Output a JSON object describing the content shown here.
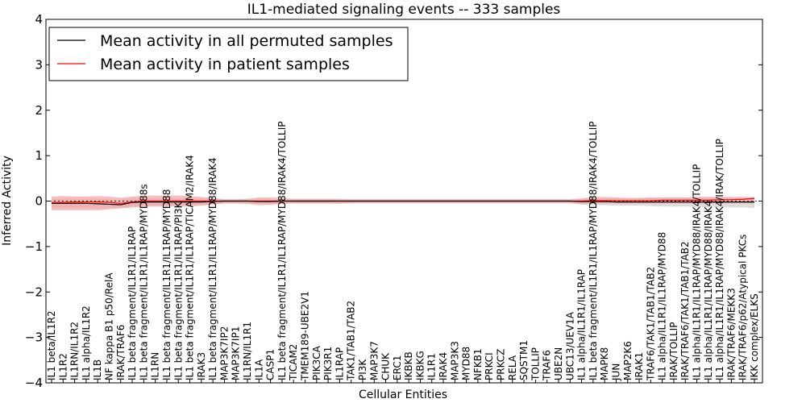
{
  "chart_data": {
    "type": "line",
    "title": "IL1-mediated signaling events -- 333 samples",
    "xlabel": "Cellular Entities",
    "ylabel": "Inferred Activity",
    "ylim": [
      -4,
      4
    ],
    "yticks": [
      "−4",
      "−3",
      "−2",
      "−1",
      "0",
      "1",
      "2",
      "3",
      "4"
    ],
    "legend_position": "top-left",
    "colors": {
      "permuted": "#000000",
      "patient": "#ff0000",
      "patient_band": "#f4a5a5",
      "permuted_band": "#d9d9d9"
    },
    "categories": [
      "IL1 beta/IL1R2",
      "IL1R2",
      "IL1RN/IL1R2",
      "IL1 alpha/IL1R2",
      "IL1B",
      "NF kappa B1 p50/RelA",
      "IRAK/TRAF6",
      "IL1 beta fragment/IL1R1/IL1RAP",
      "IL1 beta fragment/IL1R1/IL1RAP/MYD88s",
      "IL1RN",
      "IL1 beta fragment/IL1R1/IL1RAP/MYD88",
      "IL1 beta fragment/IL1R1/IL1RAP/PI3K",
      "IL1 beta fragment/IL1R1/IL1RAP/TICAM2/IRAK4",
      "IRAK3",
      "IL1 beta fragment/IL1R1/IL1RAP/MYD88/IRAK4",
      "MAP3K7IP2",
      "MAP3K7IP1",
      "IL1RN/IL1R1",
      "IL1A",
      "CASP1",
      "IL1 beta fragment/IL1R1/IL1RAP/MYD88/IRAK4/TOLLIP",
      "TICAM2",
      "TMEM189-UBE2V1",
      "PIK3CA",
      "PIK3R1",
      "IL1RAP",
      "TAK1/TAB1/TAB2",
      "PI3K",
      "MAP3K7",
      "CHUK",
      "ERC1",
      "IKBKB",
      "IKBKG",
      "IL1R1",
      "IRAK4",
      "MAP3K3",
      "MYD88",
      "NFKB1",
      "PRKCI",
      "PRKCZ",
      "RELA",
      "SQSTM1",
      "TOLLIP",
      "TRAF6",
      "UBE2N",
      "UBC13/UEV1A",
      "IL1 alpha/IL1R1/IL1RAP",
      "IL1 beta fragment/IL1R1/IL1RAP/MYD88/IRAK4/TOLLIP",
      "MAPK8",
      "JUN",
      "MAP2K6",
      "IRAK1",
      "TRAF6/TAK1/TAB1/TAB2",
      "IL1 alpha/IL1R1/IL1RAP/MYD88",
      "IRAK/TOLLIP",
      "IRAK/TRAF6/TAK1/TAB1/TAB2",
      "IL1 alpha/IL1R1/IL1RAP/MYD88/IRAK4/TOLLIP",
      "IL1 alpha/IL1R1/IL1RAP/MYD88/IRAK4",
      "IL1 alpha/IL1R1/IL1RAP/MYD88/IRAK4/IRAK/TOLLIP",
      "IRAK/TRAF6/MEKK3",
      "IRAK/TRAF6/p62/Atypical PKCs",
      "IKK complex/ELKS"
    ],
    "series": [
      {
        "name": "Mean activity in all permuted samples",
        "values": [
          -0.05,
          -0.05,
          -0.05,
          -0.05,
          -0.06,
          -0.07,
          -0.08,
          -0.03,
          -0.02,
          -0.02,
          -0.02,
          -0.02,
          -0.02,
          -0.02,
          -0.01,
          0,
          0,
          0,
          -0.01,
          -0.01,
          0,
          0,
          0,
          0,
          0,
          0,
          0,
          0,
          0,
          0,
          0,
          0,
          0,
          0,
          0,
          0,
          0,
          0,
          0,
          0,
          0,
          0,
          0,
          0,
          0,
          0,
          -0.01,
          -0.01,
          -0.01,
          -0.02,
          -0.02,
          -0.02,
          -0.02,
          -0.02,
          -0.02,
          -0.02,
          -0.02,
          -0.02,
          -0.02,
          -0.02,
          -0.02,
          -0.02
        ],
        "lower": [
          -0.15,
          -0.15,
          -0.15,
          -0.15,
          -0.16,
          -0.16,
          -0.16,
          -0.12,
          -0.1,
          -0.1,
          -0.1,
          -0.1,
          -0.1,
          -0.08,
          -0.07,
          -0.05,
          -0.05,
          -0.05,
          -0.06,
          -0.06,
          -0.05,
          -0.05,
          -0.05,
          -0.05,
          -0.05,
          -0.05,
          -0.05,
          -0.05,
          -0.05,
          -0.05,
          -0.05,
          -0.05,
          -0.05,
          -0.05,
          -0.05,
          -0.05,
          -0.05,
          -0.05,
          -0.05,
          -0.05,
          -0.05,
          -0.05,
          -0.05,
          -0.05,
          -0.05,
          -0.05,
          -0.08,
          -0.09,
          -0.09,
          -0.1,
          -0.1,
          -0.1,
          -0.11,
          -0.12,
          -0.12,
          -0.12,
          -0.13,
          -0.13,
          -0.13,
          -0.14,
          -0.14,
          -0.15
        ],
        "upper": [
          0.05,
          0.05,
          0.05,
          0.05,
          0.05,
          0.04,
          0.03,
          0.06,
          0.06,
          0.06,
          0.06,
          0.06,
          0.06,
          0.05,
          0.05,
          0.03,
          0.03,
          0.03,
          0.03,
          0.03,
          0.03,
          0.03,
          0.03,
          0.03,
          0.03,
          0.03,
          0.03,
          0.03,
          0.03,
          0.03,
          0.03,
          0.03,
          0.03,
          0.03,
          0.03,
          0.03,
          0.03,
          0.03,
          0.03,
          0.03,
          0.03,
          0.03,
          0.03,
          0.03,
          0.03,
          0.03,
          0.05,
          0.06,
          0.06,
          0.06,
          0.06,
          0.06,
          0.07,
          0.08,
          0.08,
          0.08,
          0.09,
          0.09,
          0.1,
          0.1,
          0.1,
          0.1
        ]
      },
      {
        "name": "Mean activity in patient samples",
        "values": [
          -0.03,
          -0.03,
          -0.02,
          -0.02,
          -0.02,
          -0.03,
          -0.05,
          -0.02,
          0,
          0,
          0,
          0,
          0,
          0,
          0,
          0,
          0,
          0,
          0,
          0,
          0,
          0,
          0,
          0,
          0,
          0,
          0,
          0,
          0,
          0,
          0,
          0,
          0,
          0,
          0,
          0,
          0,
          0,
          0,
          0,
          0,
          0,
          0,
          0,
          0,
          0,
          0,
          0.01,
          0.01,
          0.01,
          0.01,
          0.01,
          0.01,
          0.02,
          0.02,
          0.02,
          0.02,
          0.02,
          0.03,
          0.03,
          0.04,
          0.06
        ],
        "lower": [
          -0.2,
          -0.2,
          -0.2,
          -0.2,
          -0.2,
          -0.18,
          -0.16,
          -0.14,
          -0.12,
          -0.12,
          -0.12,
          -0.12,
          -0.12,
          -0.1,
          -0.08,
          -0.05,
          -0.05,
          -0.06,
          -0.09,
          -0.08,
          -0.06,
          -0.05,
          -0.05,
          -0.05,
          -0.05,
          -0.06,
          -0.04,
          -0.04,
          -0.04,
          -0.04,
          -0.04,
          -0.04,
          -0.04,
          -0.04,
          -0.04,
          -0.04,
          -0.04,
          -0.04,
          -0.04,
          -0.04,
          -0.04,
          -0.04,
          -0.04,
          -0.04,
          -0.04,
          -0.04,
          -0.06,
          -0.06,
          -0.05,
          -0.05,
          -0.05,
          -0.05,
          -0.05,
          -0.05,
          -0.05,
          -0.05,
          -0.05,
          -0.05,
          -0.05,
          -0.05,
          -0.05,
          -0.05
        ],
        "upper": [
          0.1,
          0.11,
          0.1,
          0.1,
          0.11,
          0.1,
          0.07,
          0.1,
          0.12,
          0.12,
          0.12,
          0.12,
          0.11,
          0.09,
          0.07,
          0.04,
          0.04,
          0.05,
          0.08,
          0.08,
          0.07,
          0.05,
          0.05,
          0.05,
          0.05,
          0.05,
          0.04,
          0.04,
          0.04,
          0.04,
          0.04,
          0.04,
          0.04,
          0.04,
          0.04,
          0.04,
          0.04,
          0.04,
          0.04,
          0.04,
          0.04,
          0.04,
          0.04,
          0.04,
          0.04,
          0.04,
          0.06,
          0.09,
          0.09,
          0.08,
          0.07,
          0.07,
          0.08,
          0.08,
          0.08,
          0.08,
          0.09,
          0.09,
          0.08,
          0.08,
          0.07,
          0.08
        ]
      }
    ]
  }
}
